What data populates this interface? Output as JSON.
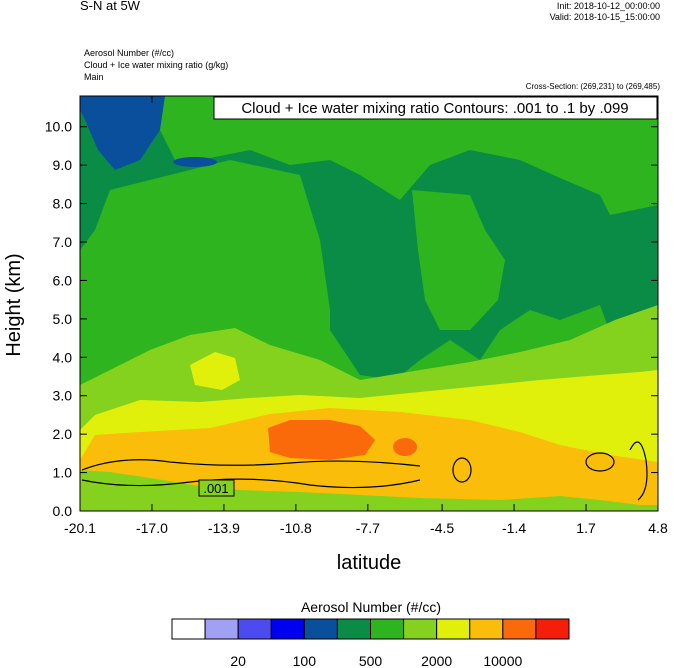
{
  "header": {
    "title": "S-N at 5W",
    "init": "Init: 2018-10-12_00:00:00",
    "valid": "Valid: 2018-10-15_15:00:00",
    "subtitle_lines": [
      "Aerosol Number   (#/cc)",
      "Cloud + Ice water mixing ratio   (g/kg)",
      "Main"
    ],
    "cross_section": "Cross-Section: (269,231) to (269,485)"
  },
  "chart_data": {
    "type": "heatmap",
    "xlabel": "latitude",
    "ylabel": "Height (km)",
    "xlim": [
      -20.1,
      4.8
    ],
    "ylim": [
      0.0,
      10.8
    ],
    "x_ticks": [
      -20.1,
      -17.0,
      -13.9,
      -10.8,
      -7.7,
      -4.5,
      -1.4,
      1.7,
      4.8
    ],
    "x_tick_labels": [
      "-20.1",
      "-17.0",
      "-13.9",
      "-10.8",
      "-7.7",
      "-4.5",
      "-1.4",
      "1.7",
      "4.8"
    ],
    "y_ticks": [
      0,
      1,
      2,
      3,
      4,
      5,
      6,
      7,
      8,
      9,
      10
    ],
    "y_tick_labels": [
      "0.0",
      "1.0",
      "2.0",
      "3.0",
      "4.0",
      "5.0",
      "6.0",
      "7.0",
      "8.0",
      "9.0",
      "10.0"
    ],
    "contour_annotation": "Cloud + Ice water mixing ratio Contours: .001 to .1 by .099",
    "contour_label": ".001",
    "contour_levels": [
      0.001,
      0.1
    ],
    "colorbar": {
      "title": "Aerosol Number  (#/cc)",
      "colors": [
        "#ffffff",
        "#a0a0f5",
        "#4b4bf0",
        "#0000f0",
        "#0a4f9b",
        "#0a8c46",
        "#2db41e",
        "#84d21e",
        "#e1f00a",
        "#fabe0a",
        "#fa6a0a",
        "#f51e0a"
      ],
      "tick_labels": [
        "20",
        "100",
        "500",
        "2000",
        "10000"
      ]
    },
    "bands": [
      {
        "name": "mid-height green",
        "color": "#2db41e"
      },
      {
        "name": "upper dark green",
        "color": "#0a8c46"
      },
      {
        "name": "upper blue",
        "color": "#0a4f9b"
      },
      {
        "name": "light green",
        "color": "#84d21e"
      },
      {
        "name": "yellow",
        "color": "#e1f00a"
      },
      {
        "name": "orange",
        "color": "#fabe0a"
      },
      {
        "name": "red-orange maxima",
        "color": "#fa6a0a"
      }
    ]
  }
}
